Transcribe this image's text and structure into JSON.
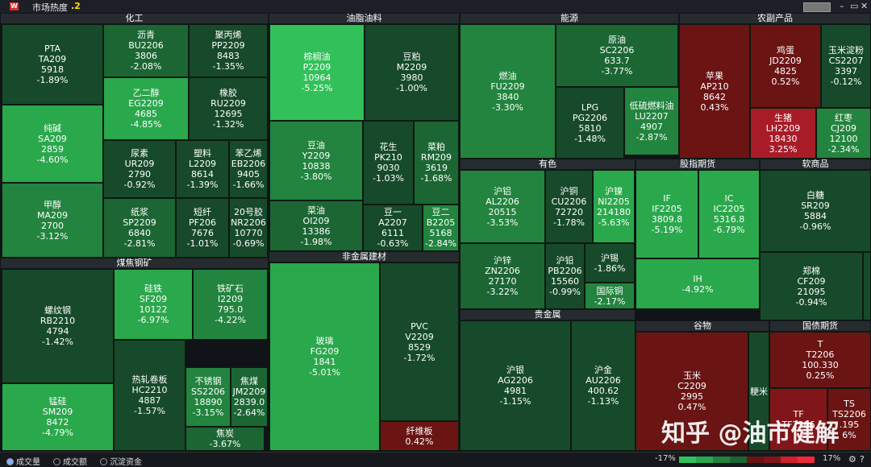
{
  "app": {
    "logo": "W",
    "title": "市场热度",
    "subtitle": ".2",
    "minimize": "–",
    "restore": "▭",
    "close": "✕"
  },
  "sectors": {
    "chemical": "化工",
    "oils": "油脂油料",
    "energy": "能源",
    "agri": "农副产品",
    "coal": "煤焦钢矿",
    "nonmetal": "非金属建材",
    "nonferrous": "有色",
    "index": "股指期货",
    "soft": "软商品",
    "precious": "贵金属",
    "grains": "谷物",
    "bond": "国债期货"
  },
  "tiles": {
    "pta": {
      "name": "PTA",
      "code": "TA209",
      "price": "5918",
      "chg": "-1.89%"
    },
    "bu": {
      "name": "沥青",
      "code": "BU2206",
      "price": "3806",
      "chg": "-2.08%"
    },
    "pp": {
      "name": "聚丙烯",
      "code": "PP2209",
      "price": "8483",
      "chg": "-1.35%"
    },
    "eg": {
      "name": "乙二醇",
      "code": "EG2209",
      "price": "4685",
      "chg": "-4.85%"
    },
    "ru": {
      "name": "橡胶",
      "code": "RU2209",
      "price": "12695",
      "chg": "-1.32%"
    },
    "sa": {
      "name": "纯碱",
      "code": "SA209",
      "price": "2859",
      "chg": "-4.60%"
    },
    "ur": {
      "name": "尿素",
      "code": "UR209",
      "price": "2790",
      "chg": "-0.92%"
    },
    "l": {
      "name": "塑料",
      "code": "L2209",
      "price": "8614",
      "chg": "-1.39%"
    },
    "eb": {
      "name": "苯乙烯",
      "code": "EB2206",
      "price": "9405",
      "chg": "-1.66%"
    },
    "ma": {
      "name": "甲醇",
      "code": "MA209",
      "price": "2700",
      "chg": "-3.12%"
    },
    "sp": {
      "name": "纸浆",
      "code": "SP2209",
      "price": "6840",
      "chg": "-2.81%"
    },
    "pf": {
      "name": "短纤",
      "code": "PF206",
      "price": "7676",
      "chg": "-1.01%"
    },
    "nr": {
      "name": "20号胶",
      "code": "NR2206",
      "price": "10770",
      "chg": "-0.69%"
    },
    "p": {
      "name": "棕榈油",
      "code": "P2209",
      "price": "10964",
      "chg": "-5.25%"
    },
    "m": {
      "name": "豆粕",
      "code": "M2209",
      "price": "3980",
      "chg": "-1.00%"
    },
    "y": {
      "name": "豆油",
      "code": "Y2209",
      "price": "10838",
      "chg": "-3.80%"
    },
    "pk": {
      "name": "花生",
      "code": "PK210",
      "price": "9030",
      "chg": "-1.03%"
    },
    "rm": {
      "name": "菜粕",
      "code": "RM209",
      "price": "3619",
      "chg": "-1.68%"
    },
    "oi": {
      "name": "菜油",
      "code": "OI209",
      "price": "13386",
      "chg": "-1.98%"
    },
    "a": {
      "name": "豆一",
      "code": "A2207",
      "price": "6111",
      "chg": "-0.63%"
    },
    "b": {
      "name": "豆二",
      "code": "B2205",
      "price": "5168",
      "chg": "-2.84%"
    },
    "fu": {
      "name": "燃油",
      "code": "FU2209",
      "price": "3840",
      "chg": "-3.30%"
    },
    "sc": {
      "name": "原油",
      "code": "SC2206",
      "price": "633.7",
      "chg": "-3.77%"
    },
    "pg": {
      "name": "LPG",
      "code": "PG2206",
      "price": "5810",
      "chg": "-1.48%"
    },
    "lu": {
      "name": "低硫燃料油",
      "code": "LU2207",
      "price": "4907",
      "chg": "-2.87%"
    },
    "ap": {
      "name": "苹果",
      "code": "AP210",
      "price": "8642",
      "chg": "0.43%"
    },
    "jd": {
      "name": "鸡蛋",
      "code": "JD2209",
      "price": "4825",
      "chg": "0.52%"
    },
    "cs": {
      "name": "玉米淀粉",
      "code": "CS2207",
      "price": "3397",
      "chg": "-0.12%"
    },
    "lh": {
      "name": "生猪",
      "code": "LH2209",
      "price": "18430",
      "chg": "3.25%"
    },
    "cj": {
      "name": "红枣",
      "code": "CJ209",
      "price": "12100",
      "chg": "-2.34%"
    },
    "rb": {
      "name": "螺纹钢",
      "code": "RB2210",
      "price": "4794",
      "chg": "-1.42%"
    },
    "sf": {
      "name": "硅铁",
      "code": "SF209",
      "price": "10122",
      "chg": "-6.97%"
    },
    "i": {
      "name": "铁矿石",
      "code": "I2209",
      "price": "795.0",
      "chg": "-4.22%"
    },
    "sm": {
      "name": "锰硅",
      "code": "SM209",
      "price": "8472",
      "chg": "-4.79%"
    },
    "hc": {
      "name": "热轧卷板",
      "code": "HC2210",
      "price": "4887",
      "chg": "-1.57%"
    },
    "ss": {
      "name": "不锈钢",
      "code": "SS2206",
      "price": "18890",
      "chg": "-3.15%"
    },
    "jm": {
      "name": "焦煤",
      "code": "JM2209",
      "price": "2839.0",
      "chg": "-2.64%"
    },
    "j": {
      "name": "焦炭",
      "chg": "-3.67%"
    },
    "fg": {
      "name": "玻璃",
      "code": "FG209",
      "price": "1841",
      "chg": "-5.01%"
    },
    "v": {
      "name": "PVC",
      "code": "V2209",
      "price": "8529",
      "chg": "-1.72%"
    },
    "fb": {
      "name": "纤维板",
      "chg": "0.42%"
    },
    "al": {
      "name": "沪铝",
      "code": "AL2206",
      "price": "20515",
      "chg": "-3.53%"
    },
    "cu": {
      "name": "沪铜",
      "code": "CU2206",
      "price": "72720",
      "chg": "-1.78%"
    },
    "ni": {
      "name": "沪镍",
      "code": "NI2205",
      "price": "214180",
      "chg": "-5.63%"
    },
    "zn": {
      "name": "沪锌",
      "code": "ZN2206",
      "price": "27170",
      "chg": "-3.22%"
    },
    "pb": {
      "name": "沪铅",
      "code": "PB2206",
      "price": "15560",
      "chg": "-0.99%"
    },
    "sn": {
      "name": "沪锡",
      "chg": "-1.86%"
    },
    "bc": {
      "name": "国际铜",
      "chg": "-2.17%"
    },
    "ifx": {
      "name": "IF",
      "code": "IF2205",
      "price": "3809.8",
      "chg": "-5.19%"
    },
    "ic": {
      "name": "IC",
      "code": "IC2205",
      "price": "5316.8",
      "chg": "-6.79%"
    },
    "ih": {
      "name": "IH",
      "chg": "-4.92%"
    },
    "sr": {
      "name": "白糖",
      "code": "SR209",
      "price": "5884",
      "chg": "-0.96%"
    },
    "cf": {
      "name": "郑棉",
      "code": "CF209",
      "price": "21095",
      "chg": "-0.94%"
    },
    "ag": {
      "name": "沪银",
      "code": "AG2206",
      "price": "4981",
      "chg": "-1.15%"
    },
    "au": {
      "name": "沪金",
      "code": "AU2206",
      "price": "400.62",
      "chg": "-1.13%"
    },
    "c": {
      "name": "玉米",
      "code": "C2209",
      "price": "2995",
      "chg": "0.47%"
    },
    "rr": {
      "name": "粳米"
    },
    "t": {
      "name": "T",
      "code": "T2206",
      "price": "100.330",
      "chg": "0.25%"
    },
    "tf": {
      "name": "TF",
      "code": "TF2206"
    },
    "ts": {
      "name": "TS",
      "code": "TS2206",
      "price": ".195",
      "chg": "6%"
    }
  },
  "status": {
    "volume": "成交量",
    "turnover": "成交额",
    "capital": "沉淀资金",
    "legend_min": "-17%",
    "legend_max": "17%"
  },
  "watermark": "知乎 @油市健解"
}
